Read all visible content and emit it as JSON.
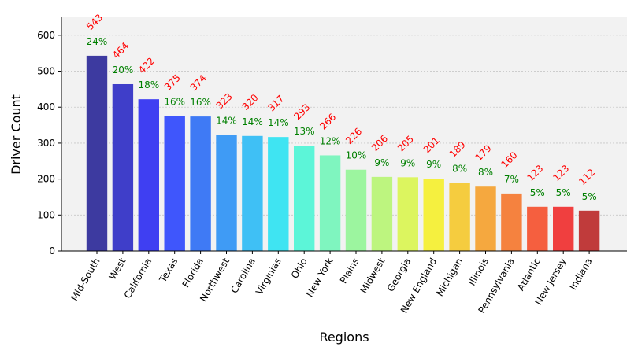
{
  "chart_data": {
    "type": "bar",
    "title": "",
    "xlabel": "Regions",
    "ylabel": "Driver Count",
    "ylim": [
      0,
      650
    ],
    "yticks": [
      0,
      100,
      200,
      300,
      400,
      500,
      600
    ],
    "grid": true,
    "categories": [
      "Mid-South",
      "West",
      "California",
      "Texas",
      "Florida",
      "Northwest",
      "Carolina",
      "Virginias",
      "Ohio",
      "New York",
      "Plains",
      "Midwest",
      "Georgia",
      "New England",
      "Michigan",
      "Illinois",
      "Pennsylvania",
      "Atlantic",
      "New Jersey",
      "Indiana"
    ],
    "values": [
      543,
      464,
      422,
      375,
      374,
      323,
      320,
      317,
      293,
      266,
      226,
      206,
      205,
      201,
      189,
      179,
      160,
      123,
      123,
      112
    ],
    "percent_labels": [
      "24%",
      "20%",
      "18%",
      "16%",
      "16%",
      "14%",
      "14%",
      "14%",
      "13%",
      "12%",
      "10%",
      "9%",
      "9%",
      "9%",
      "8%",
      "8%",
      "7%",
      "5%",
      "5%",
      "5%"
    ],
    "bar_colors": [
      "#3d3aa0",
      "#3f3ec9",
      "#3f3ff2",
      "#3f56fc",
      "#3f7af5",
      "#3f9bf5",
      "#3fc0f5",
      "#3fe4f2",
      "#5cf5d8",
      "#7ff5bf",
      "#9cf59f",
      "#bdf57f",
      "#dcf55f",
      "#f5f03f",
      "#f5cc3f",
      "#f5a83f",
      "#f5823f",
      "#f55f3f",
      "#f03f3f",
      "#c03b3b"
    ],
    "value_label_color": "#ff0000",
    "percent_label_color": "#008000",
    "plot_background": "#f2f2f2"
  }
}
